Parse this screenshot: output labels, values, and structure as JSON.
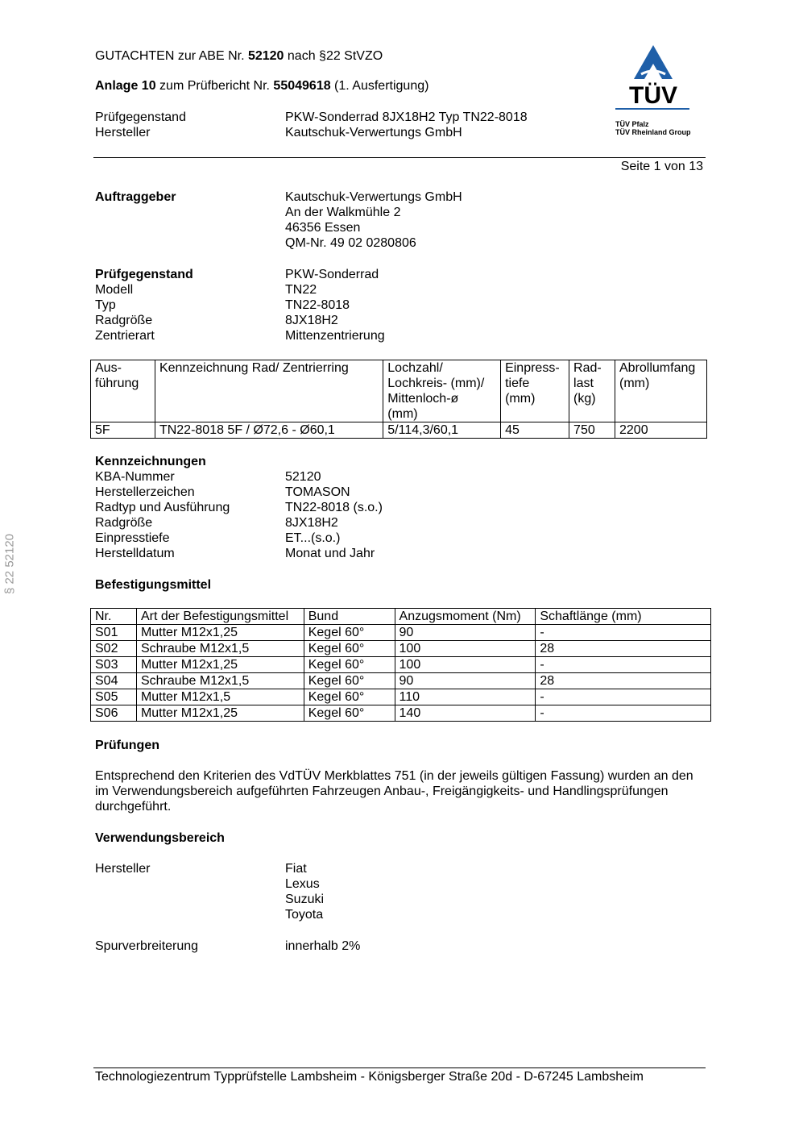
{
  "header": {
    "line1_pre": "GUTACHTEN zur ABE Nr. ",
    "line1_bold": "52120",
    "line1_post": " nach §22 StVZO",
    "line2_bold1": "Anlage 10",
    "line2_mid": " zum Prüfbericht Nr. ",
    "line2_bold2": "55049618",
    "line2_post": " (1. Ausfertigung)",
    "rows": [
      {
        "label": "Prüfgegenstand",
        "value": "PKW-Sonderrad 8JX18H2 Typ TN22-8018"
      },
      {
        "label": "Hersteller",
        "value": "Kautschuk-Verwertungs GmbH"
      }
    ],
    "page": "Seite 1 von 13"
  },
  "logo": {
    "text": "TÜV",
    "line1": "TÜV Pfalz",
    "line2": "TÜV Rheinland Group",
    "color": "#1f5fa8"
  },
  "side_text": "§ 22  52120",
  "auftraggeber": {
    "label": "Auftraggeber",
    "lines": [
      "Kautschuk-Verwertungs GmbH",
      "An der Walkmühle 2",
      "46356 Essen",
      "QM-Nr. 49 02 0280806"
    ]
  },
  "pruefgegenstand": {
    "rows": [
      {
        "label": "Prüfgegenstand",
        "value": "PKW-Sonderrad"
      },
      {
        "label": "Modell",
        "value": "TN22"
      },
      {
        "label": "Typ",
        "value": "TN22-8018"
      },
      {
        "label": "Radgröße",
        "value": "8JX18H2"
      },
      {
        "label": "Zentrierart",
        "value": "Mittenzentrierung"
      }
    ]
  },
  "table1": {
    "headers": [
      "Aus-\nführung",
      "Kennzeichnung Rad/ Zentrierring",
      "Lochzahl/\nLochkreis- (mm)/\nMittenloch-ø\n(mm)",
      "Einpress-\ntiefe\n(mm)",
      "Rad-\nlast\n(kg)",
      "Abrollumfang\n(mm)"
    ],
    "rows": [
      [
        "5F",
        "TN22-8018 5F / Ø72,6 - Ø60,1",
        "5/114,3/60,1",
        "45",
        "750",
        "2200"
      ]
    ]
  },
  "kennzeichnungen": {
    "title": "Kennzeichnungen",
    "rows": [
      {
        "label": "KBA-Nummer",
        "value": "52120"
      },
      {
        "label": "Herstellerzeichen",
        "value": "TOMASON"
      },
      {
        "label": "Radtyp und Ausführung",
        "value": "TN22-8018 (s.o.)"
      },
      {
        "label": "Radgröße",
        "value": "8JX18H2"
      },
      {
        "label": "Einpresstiefe",
        "value": "ET...(s.o.)"
      },
      {
        "label": "Herstelldatum",
        "value": "Monat und Jahr"
      }
    ]
  },
  "befestigung": {
    "title": "Befestigungsmittel",
    "headers": [
      "Nr.",
      "Art der Befestigungsmittel",
      "Bund",
      "Anzugsmoment (Nm)",
      "Schaftlänge (mm)"
    ],
    "rows": [
      [
        "S01",
        "Mutter M12x1,25",
        "Kegel 60°",
        "90",
        "-"
      ],
      [
        "S02",
        "Schraube M12x1,5",
        "Kegel 60°",
        "100",
        "28"
      ],
      [
        "S03",
        "Mutter M12x1,25",
        "Kegel 60°",
        "100",
        "-"
      ],
      [
        "S04",
        "Schraube M12x1,5",
        "Kegel 60°",
        "90",
        "28"
      ],
      [
        "S05",
        "Mutter M12x1,5",
        "Kegel 60°",
        "110",
        "-"
      ],
      [
        "S06",
        "Mutter M12x1,25",
        "Kegel 60°",
        "140",
        "-"
      ]
    ]
  },
  "pruefungen": {
    "title": "Prüfungen",
    "text": "Entsprechend den Kriterien des VdTÜV Merkblattes 751 (in der jeweils gültigen Fassung) wurden an den im Verwendungsbereich aufgeführten Fahrzeugen Anbau-, Freigängigkeits- und Handlingsprüfungen durchgeführt."
  },
  "verwendungsbereich": {
    "title": "Verwendungsbereich",
    "hersteller_label": "Hersteller",
    "hersteller": [
      "Fiat",
      "Lexus",
      "Suzuki",
      "Toyota"
    ],
    "spur_label": "Spurverbreiterung",
    "spur_value": "innerhalb 2%"
  },
  "footer": {
    "text": "Technologiezentrum Typprüfstelle Lambsheim - Königsberger Straße 20d - D-67245 Lambsheim"
  }
}
